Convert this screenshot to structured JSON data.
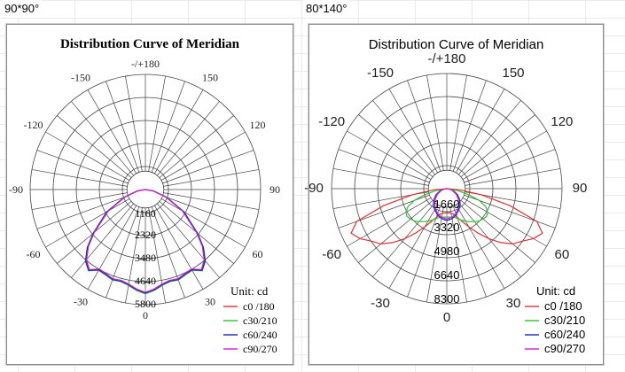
{
  "sheet": {
    "label_left": "90*90°",
    "label_right": "80*140°"
  },
  "chart_data": [
    {
      "type": "polar",
      "panel": "90*90°",
      "title": "Distribution Curve of  Meridian",
      "angle_labels": [
        "-/+180",
        "-150",
        "150",
        "-120",
        "120",
        "-90",
        "90",
        "-60",
        "60",
        "-30",
        "30",
        "0"
      ],
      "radial_tick_labels": [
        "1160",
        "2320",
        "3480",
        "4640",
        "5800"
      ],
      "radial_max": 5800,
      "unit": "Unit: cd",
      "series": [
        {
          "name": "c0 /180",
          "color": "#e03030",
          "values": [
            [
              -90,
              0
            ],
            [
              -80,
              400
            ],
            [
              -70,
              1100
            ],
            [
              -60,
              2200
            ],
            [
              -50,
              3400
            ],
            [
              -45,
              4100
            ],
            [
              -40,
              4650
            ],
            [
              -35,
              4950
            ],
            [
              -30,
              4650
            ],
            [
              -25,
              4700
            ],
            [
              -20,
              4800
            ],
            [
              -15,
              4750
            ],
            [
              -10,
              4850
            ],
            [
              -5,
              5050
            ],
            [
              0,
              5200
            ],
            [
              5,
              5050
            ],
            [
              10,
              4850
            ],
            [
              15,
              4750
            ],
            [
              20,
              4800
            ],
            [
              25,
              4700
            ],
            [
              30,
              4650
            ],
            [
              35,
              4950
            ],
            [
              40,
              4650
            ],
            [
              45,
              4100
            ],
            [
              50,
              3400
            ],
            [
              60,
              2200
            ],
            [
              70,
              1100
            ],
            [
              80,
              400
            ],
            [
              90,
              0
            ]
          ]
        },
        {
          "name": "c30/210",
          "color": "#30c030",
          "values": [
            [
              -90,
              0
            ],
            [
              -80,
              420
            ],
            [
              -70,
              1150
            ],
            [
              -60,
              2250
            ],
            [
              -50,
              3450
            ],
            [
              -45,
              4150
            ],
            [
              -40,
              4700
            ],
            [
              -35,
              5000
            ],
            [
              -30,
              4700
            ],
            [
              -25,
              4750
            ],
            [
              -20,
              4850
            ],
            [
              -15,
              4800
            ],
            [
              -10,
              4900
            ],
            [
              -5,
              5100
            ],
            [
              0,
              5250
            ],
            [
              5,
              5100
            ],
            [
              10,
              4900
            ],
            [
              15,
              4800
            ],
            [
              20,
              4850
            ],
            [
              25,
              4750
            ],
            [
              30,
              4700
            ],
            [
              35,
              5000
            ],
            [
              40,
              4700
            ],
            [
              45,
              4150
            ],
            [
              50,
              3450
            ],
            [
              60,
              2250
            ],
            [
              70,
              1150
            ],
            [
              80,
              420
            ],
            [
              90,
              0
            ]
          ]
        },
        {
          "name": "c60/240",
          "color": "#2020c0",
          "values": [
            [
              -90,
              0
            ],
            [
              -80,
              410
            ],
            [
              -70,
              1120
            ],
            [
              -60,
              2230
            ],
            [
              -50,
              3420
            ],
            [
              -45,
              4120
            ],
            [
              -40,
              4680
            ],
            [
              -35,
              4970
            ],
            [
              -30,
              4680
            ],
            [
              -25,
              4720
            ],
            [
              -20,
              4820
            ],
            [
              -15,
              4770
            ],
            [
              -10,
              4870
            ],
            [
              -5,
              5070
            ],
            [
              0,
              5220
            ],
            [
              5,
              5070
            ],
            [
              10,
              4870
            ],
            [
              15,
              4770
            ],
            [
              20,
              4820
            ],
            [
              25,
              4720
            ],
            [
              30,
              4680
            ],
            [
              35,
              4970
            ],
            [
              40,
              4680
            ],
            [
              45,
              4120
            ],
            [
              50,
              3420
            ],
            [
              60,
              2230
            ],
            [
              70,
              1120
            ],
            [
              80,
              410
            ],
            [
              90,
              0
            ]
          ]
        },
        {
          "name": "c90/270",
          "color": "#d020d0",
          "values": [
            [
              -90,
              0
            ],
            [
              -80,
              380
            ],
            [
              -70,
              1080
            ],
            [
              -60,
              2150
            ],
            [
              -50,
              3350
            ],
            [
              -45,
              4050
            ],
            [
              -40,
              4600
            ],
            [
              -35,
              4920
            ],
            [
              -30,
              4620
            ],
            [
              -25,
              4680
            ],
            [
              -20,
              4780
            ],
            [
              -15,
              4730
            ],
            [
              -10,
              4830
            ],
            [
              -5,
              5030
            ],
            [
              0,
              5180
            ],
            [
              5,
              5030
            ],
            [
              10,
              4830
            ],
            [
              15,
              4730
            ],
            [
              20,
              4780
            ],
            [
              25,
              4680
            ],
            [
              30,
              4620
            ],
            [
              35,
              4920
            ],
            [
              40,
              4600
            ],
            [
              45,
              4050
            ],
            [
              50,
              3350
            ],
            [
              60,
              2150
            ],
            [
              70,
              1080
            ],
            [
              80,
              380
            ],
            [
              90,
              0
            ]
          ]
        }
      ]
    },
    {
      "type": "polar",
      "panel": "80*140°",
      "title": "Distribution Curve of  Meridian",
      "angle_labels": [
        "-/+180",
        "-150",
        "150",
        "-120",
        "120",
        "-90",
        "90",
        "-60",
        "60",
        "-30",
        "30",
        "0"
      ],
      "radial_tick_labels": [
        "1660",
        "3320",
        "4980",
        "6640",
        "8300"
      ],
      "radial_max": 8300,
      "unit": "Unit: cd",
      "series": [
        {
          "name": "c0 /180",
          "color": "#e03030",
          "values": [
            [
              -90,
              0
            ],
            [
              -85,
              900
            ],
            [
              -80,
              2500
            ],
            [
              -75,
              4700
            ],
            [
              -70,
              6900
            ],
            [
              -65,
              7600
            ],
            [
              -60,
              7200
            ],
            [
              -55,
              6600
            ],
            [
              -50,
              6200
            ],
            [
              -45,
              5500
            ],
            [
              -40,
              4700
            ],
            [
              -35,
              3900
            ],
            [
              -30,
              3200
            ],
            [
              -25,
              2600
            ],
            [
              -20,
              2200
            ],
            [
              -15,
              1900
            ],
            [
              -10,
              1800
            ],
            [
              -5,
              1750
            ],
            [
              0,
              1750
            ],
            [
              5,
              1750
            ],
            [
              10,
              1800
            ],
            [
              15,
              1900
            ],
            [
              20,
              2200
            ],
            [
              25,
              2600
            ],
            [
              30,
              3200
            ],
            [
              35,
              3900
            ],
            [
              40,
              4700
            ],
            [
              45,
              5500
            ],
            [
              50,
              6200
            ],
            [
              55,
              6600
            ],
            [
              60,
              7200
            ],
            [
              65,
              7600
            ],
            [
              70,
              6900
            ],
            [
              75,
              4700
            ],
            [
              80,
              2500
            ],
            [
              85,
              900
            ],
            [
              90,
              0
            ]
          ]
        },
        {
          "name": "c30/210",
          "color": "#30c030",
          "values": [
            [
              -90,
              0
            ],
            [
              -80,
              800
            ],
            [
              -75,
              1600
            ],
            [
              -70,
              2500
            ],
            [
              -65,
              3100
            ],
            [
              -60,
              3400
            ],
            [
              -55,
              3500
            ],
            [
              -50,
              3400
            ],
            [
              -45,
              3300
            ],
            [
              -40,
              3100
            ],
            [
              -35,
              2900
            ],
            [
              -30,
              2700
            ],
            [
              -25,
              2500
            ],
            [
              -20,
              2300
            ],
            [
              -15,
              2150
            ],
            [
              -10,
              2100
            ],
            [
              -5,
              2050
            ],
            [
              0,
              2050
            ],
            [
              5,
              2050
            ],
            [
              10,
              2100
            ],
            [
              15,
              2150
            ],
            [
              20,
              2300
            ],
            [
              25,
              2500
            ],
            [
              30,
              2700
            ],
            [
              35,
              2900
            ],
            [
              40,
              3100
            ],
            [
              45,
              3300
            ],
            [
              50,
              3400
            ],
            [
              55,
              3500
            ],
            [
              60,
              3400
            ],
            [
              65,
              3100
            ],
            [
              70,
              2500
            ],
            [
              75,
              1600
            ],
            [
              80,
              800
            ],
            [
              90,
              0
            ]
          ]
        },
        {
          "name": "c60/240",
          "color": "#2020c0",
          "values": [
            [
              -90,
              0
            ],
            [
              -80,
              250
            ],
            [
              -70,
              550
            ],
            [
              -60,
              900
            ],
            [
              -50,
              1200
            ],
            [
              -40,
              1500
            ],
            [
              -30,
              1750
            ],
            [
              -20,
              2000
            ],
            [
              -10,
              2200
            ],
            [
              0,
              2300
            ],
            [
              10,
              2200
            ],
            [
              20,
              2000
            ],
            [
              30,
              1750
            ],
            [
              40,
              1500
            ],
            [
              50,
              1200
            ],
            [
              60,
              900
            ],
            [
              70,
              550
            ],
            [
              80,
              250
            ],
            [
              90,
              0
            ]
          ]
        },
        {
          "name": "c90/270",
          "color": "#d020d0",
          "values": [
            [
              -90,
              0
            ],
            [
              -80,
              200
            ],
            [
              -70,
              450
            ],
            [
              -60,
              750
            ],
            [
              -50,
              1050
            ],
            [
              -40,
              1350
            ],
            [
              -30,
              1650
            ],
            [
              -20,
              1900
            ],
            [
              -10,
              2100
            ],
            [
              0,
              2200
            ],
            [
              10,
              2100
            ],
            [
              20,
              1900
            ],
            [
              30,
              1650
            ],
            [
              40,
              1350
            ],
            [
              50,
              1050
            ],
            [
              60,
              750
            ],
            [
              70,
              450
            ],
            [
              80,
              200
            ],
            [
              90,
              0
            ]
          ]
        }
      ]
    }
  ]
}
